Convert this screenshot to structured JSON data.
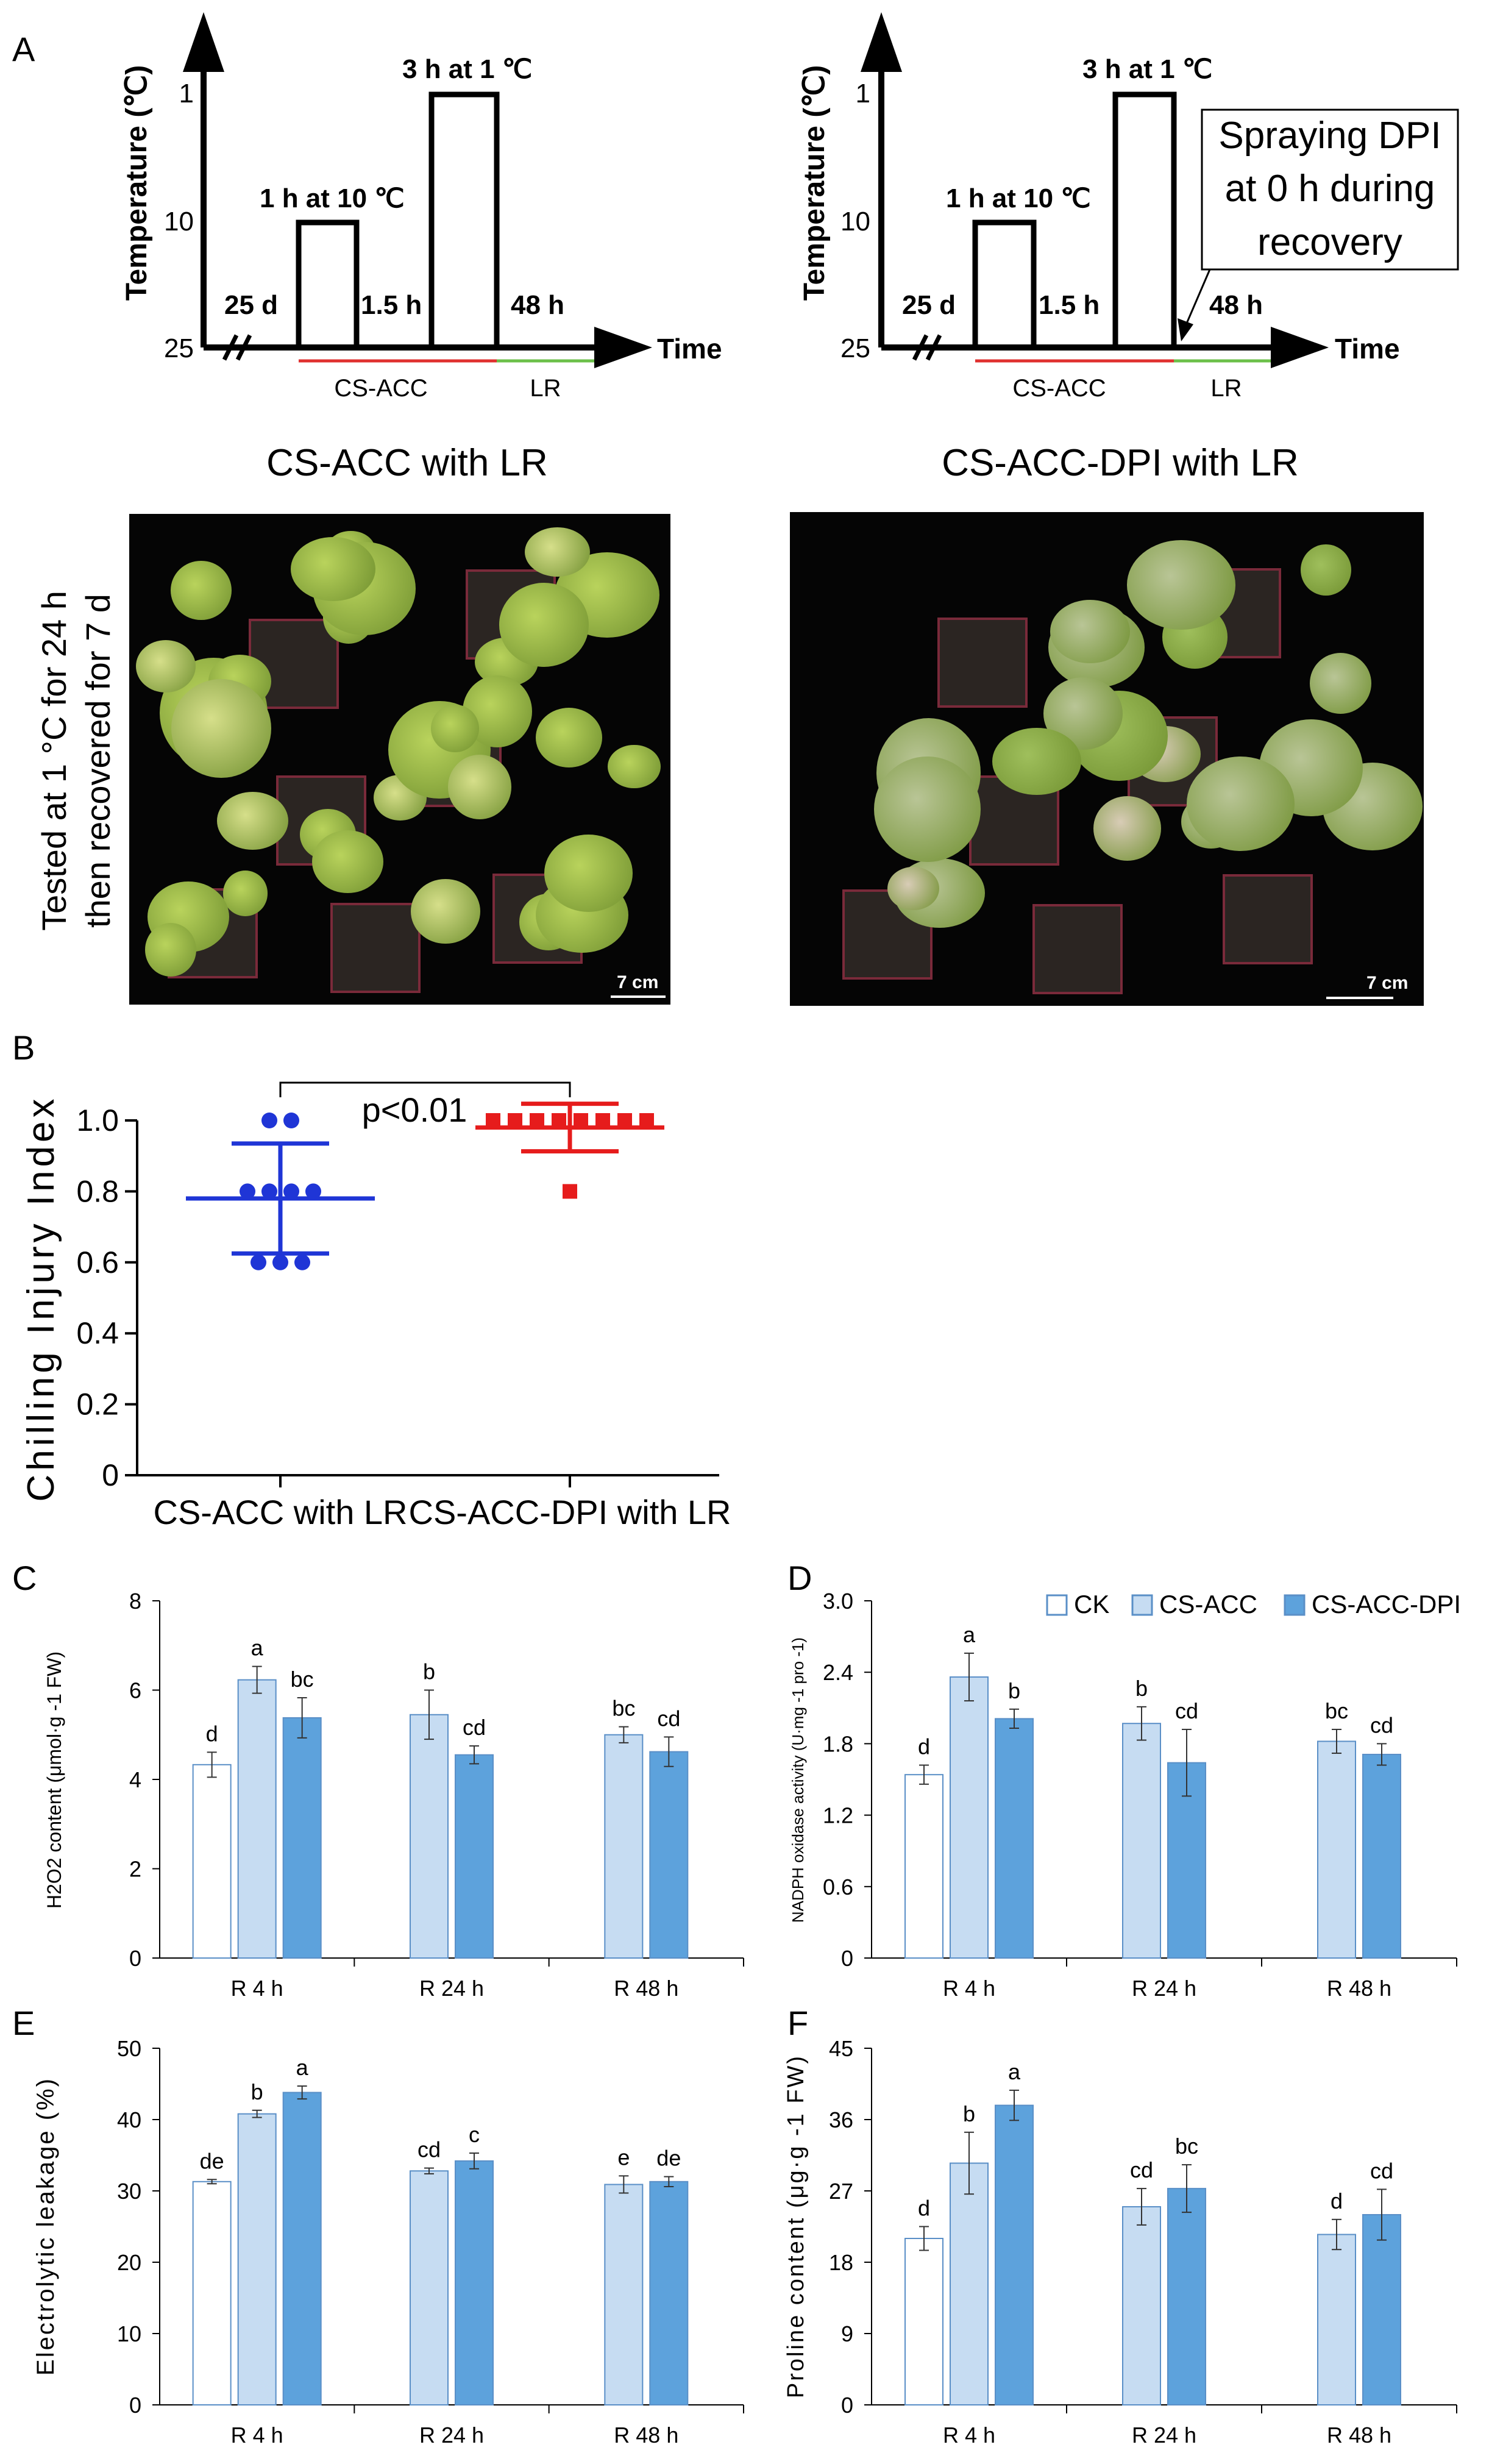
{
  "panel_letters": [
    "A",
    "B",
    "C",
    "D",
    "E",
    "F"
  ],
  "panelA": {
    "left": {
      "ylabel": "Temperature (℃)",
      "yticks": [
        "1",
        "10",
        "25"
      ],
      "steps": [
        "25 d",
        "1 h at 10 ℃",
        "1.5 h",
        "3 h at 1 ℃",
        "48 h"
      ],
      "xlabel": "Time",
      "phases": [
        "CS-ACC",
        "LR"
      ],
      "title": "CS-ACC with LR"
    },
    "right": {
      "ylabel": "Temperature (℃)",
      "yticks": [
        "1",
        "10",
        "25"
      ],
      "steps": [
        "25 d",
        "1 h at 10 ℃",
        "1.5 h",
        "3 h at 1 ℃",
        "48 h"
      ],
      "xlabel": "Time",
      "phases": [
        "CS-ACC",
        "LR"
      ],
      "note": [
        "Spraying DPI",
        "at 0 h during",
        "recovery"
      ],
      "title": "CS-ACC-DPI with LR"
    },
    "photo_side_label": [
      "Tested at 1 °C for 24 h",
      "then recovered for 7 d"
    ],
    "scale_bar": "7 cm",
    "phase_colors": {
      "cs_acc": "#e0302f",
      "lr": "#6cc04a"
    }
  },
  "chart_data": [
    {
      "panel": "B",
      "type": "scatter",
      "ylabel": "Chilling Injury Index",
      "ylim": [
        0,
        1.0
      ],
      "yticks": [
        "0",
        "0.2",
        "0.4",
        "0.6",
        "0.8",
        "1.0"
      ],
      "categories": [
        "CS-ACC with LR",
        "CS-ACC-DPI with LR"
      ],
      "series": [
        {
          "values": [
            1.0,
            1.0,
            0.8,
            0.8,
            0.8,
            0.8,
            0.6,
            0.6,
            0.6
          ],
          "mean": 0.78,
          "sd": 0.155,
          "color": "#1f35d6",
          "marker": "circle"
        },
        {
          "values": [
            1.0,
            1.0,
            1.0,
            1.0,
            1.0,
            1.0,
            1.0,
            1.0,
            0.8
          ],
          "mean": 0.98,
          "sd": 0.067,
          "color": "#e61c1c",
          "marker": "square"
        }
      ],
      "annotation": "p<0.01"
    },
    {
      "panel": "C",
      "type": "bar",
      "ylabel": "H2O2 content (μmol·g -1 FW)",
      "ylim": [
        0,
        8
      ],
      "yticks": [
        "0",
        "2",
        "4",
        "6",
        "8"
      ],
      "categories": [
        "R 4 h",
        "R 24 h",
        "R 48 h"
      ],
      "series": [
        {
          "name": "CK",
          "values": [
            4.33,
            null,
            null
          ],
          "err": [
            0.28,
            null,
            null
          ],
          "letters": [
            "d",
            "",
            ""
          ]
        },
        {
          "name": "CS-ACC",
          "values": [
            6.23,
            5.45,
            5.0
          ],
          "err": [
            0.3,
            0.55,
            0.18
          ],
          "letters": [
            "a",
            "b",
            "bc"
          ]
        },
        {
          "name": "CS-ACC-DPI",
          "values": [
            5.38,
            4.55,
            4.62
          ],
          "err": [
            0.45,
            0.2,
            0.33
          ],
          "letters": [
            "bc",
            "cd",
            "cd"
          ]
        }
      ]
    },
    {
      "panel": "D",
      "type": "bar",
      "ylabel": "NADPH oxidase activity (U·mg -1 pro -1)",
      "ylim": [
        0,
        3.0
      ],
      "yticks": [
        "0",
        "0.6",
        "1.2",
        "1.8",
        "2.4",
        "3.0"
      ],
      "categories": [
        "R 4 h",
        "R 24 h",
        "R 48 h"
      ],
      "series": [
        {
          "name": "CK",
          "values": [
            1.54,
            null,
            null
          ],
          "err": [
            0.08,
            null,
            null
          ],
          "letters": [
            "d",
            "",
            ""
          ]
        },
        {
          "name": "CS-ACC",
          "values": [
            2.36,
            1.97,
            1.82
          ],
          "err": [
            0.2,
            0.14,
            0.1
          ],
          "letters": [
            "a",
            "b",
            "bc"
          ]
        },
        {
          "name": "CS-ACC-DPI",
          "values": [
            2.01,
            1.64,
            1.71
          ],
          "err": [
            0.08,
            0.28,
            0.09
          ],
          "letters": [
            "b",
            "cd",
            "cd"
          ]
        }
      ]
    },
    {
      "panel": "E",
      "type": "bar",
      "ylabel": "Electrolytic leakage (%)",
      "ylim": [
        0,
        50
      ],
      "yticks": [
        "0",
        "10",
        "20",
        "30",
        "40",
        "50"
      ],
      "categories": [
        "R 4 h",
        "R 24 h",
        "R 48 h"
      ],
      "series": [
        {
          "name": "CK",
          "values": [
            31.3,
            null,
            null
          ],
          "err": [
            0.3,
            null,
            null
          ],
          "letters": [
            "de",
            "",
            ""
          ]
        },
        {
          "name": "CS-ACC",
          "values": [
            40.8,
            32.8,
            30.9
          ],
          "err": [
            0.5,
            0.4,
            1.2
          ],
          "letters": [
            "b",
            "cd",
            "e"
          ]
        },
        {
          "name": "CS-ACC-DPI",
          "values": [
            43.8,
            34.2,
            31.3
          ],
          "err": [
            0.9,
            1.1,
            0.7
          ],
          "letters": [
            "a",
            "c",
            "de"
          ]
        }
      ]
    },
    {
      "panel": "F",
      "type": "bar",
      "ylabel": "Proline content (μg·g -1 FW)",
      "ylim": [
        0,
        45
      ],
      "yticks": [
        "0",
        "9",
        "18",
        "27",
        "36",
        "45"
      ],
      "categories": [
        "R 4 h",
        "R 24 h",
        "R 48 h"
      ],
      "series": [
        {
          "name": "CK",
          "values": [
            21.0,
            null,
            null
          ],
          "err": [
            1.5,
            null,
            null
          ],
          "letters": [
            "d",
            "",
            ""
          ]
        },
        {
          "name": "CS-ACC",
          "values": [
            30.5,
            25.0,
            21.5
          ],
          "err": [
            3.9,
            2.3,
            1.9
          ],
          "letters": [
            "b",
            "cd",
            "d"
          ]
        },
        {
          "name": "CS-ACC-DPI",
          "values": [
            37.8,
            27.3,
            24.0
          ],
          "err": [
            1.9,
            3.0,
            3.2
          ],
          "letters": [
            "a",
            "bc",
            "cd"
          ]
        }
      ]
    }
  ],
  "legend": [
    "CK",
    "CS-ACC",
    "CS-ACC-DPI"
  ],
  "colors": {
    "ck": "#ffffff",
    "cs_acc": "#c6dcf2",
    "cs_acc_dpi": "#5da2dc",
    "edge": "#5a8fc7",
    "blue_pts": "#1f35d6",
    "red_pts": "#e61c1c"
  }
}
